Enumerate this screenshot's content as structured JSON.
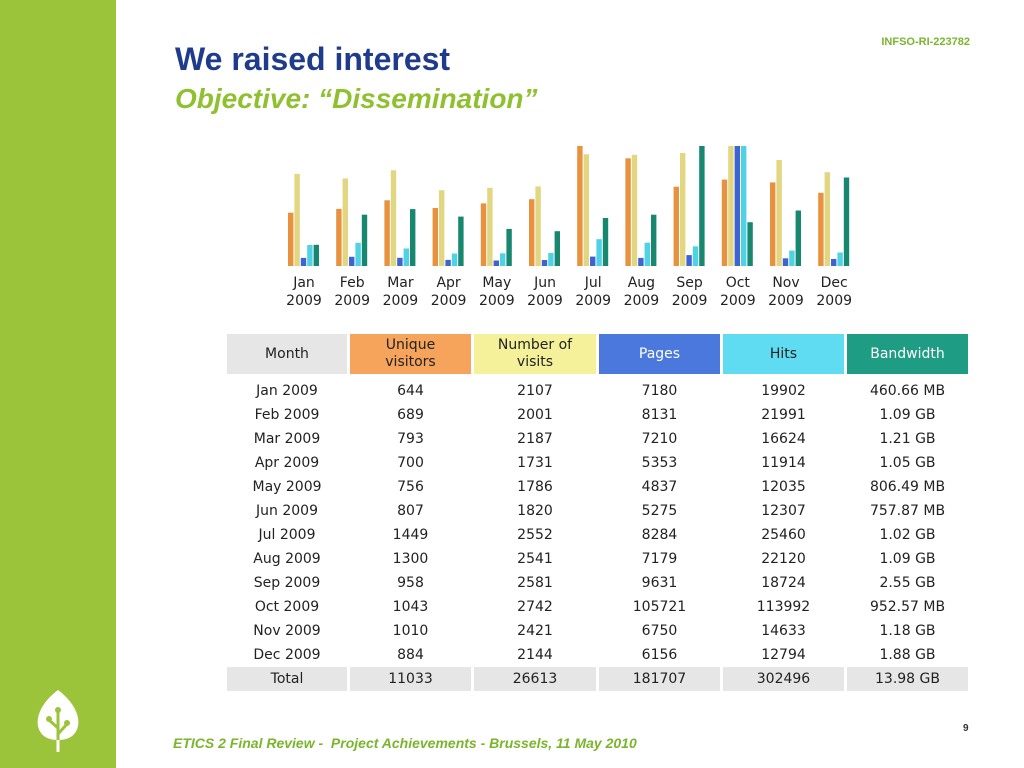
{
  "slide": {
    "title": "We raised interest",
    "subtitle": "Objective: “Dissemination”",
    "project_id": "INFSO-RI-223782",
    "footer": "ETICS 2 Final Review -  Project Achievements - Brussels, 11 May 2010",
    "page_number": "9"
  },
  "colors": {
    "sidebar": "#9cc43a",
    "title": "#1f3c8c",
    "accent": "#8fc030",
    "unique_visitors": "#f6a35c",
    "visits": "#f4f19a",
    "pages": "#4b78dc",
    "hits": "#60dcf2",
    "bandwidth": "#1f9c84"
  },
  "chart_data": {
    "type": "bar",
    "categories": [
      [
        "Jan",
        "2009"
      ],
      [
        "Feb",
        "2009"
      ],
      [
        "Mar",
        "2009"
      ],
      [
        "Apr",
        "2009"
      ],
      [
        "May",
        "2009"
      ],
      [
        "Jun",
        "2009"
      ],
      [
        "Jul",
        "2009"
      ],
      [
        "Aug",
        "2009"
      ],
      [
        "Sep",
        "2009"
      ],
      [
        "Oct",
        "2009"
      ],
      [
        "Nov",
        "2009"
      ],
      [
        "Dec",
        "2009"
      ]
    ],
    "series": [
      {
        "name": "Unique visitors",
        "color": "#e8913e",
        "values": [
          644,
          689,
          793,
          700,
          756,
          807,
          1449,
          1300,
          958,
          1043,
          1010,
          884
        ]
      },
      {
        "name": "Number of visits",
        "color": "#e2d680",
        "values": [
          2107,
          2001,
          2187,
          1731,
          1786,
          1820,
          2552,
          2541,
          2581,
          2742,
          2421,
          2144
        ]
      },
      {
        "name": "Pages",
        "color": "#3f63d0",
        "values": [
          7180,
          8131,
          7210,
          5353,
          4837,
          5275,
          8284,
          7179,
          9631,
          105721,
          6750,
          6156
        ]
      },
      {
        "name": "Hits",
        "color": "#4fd1e6",
        "values": [
          19902,
          21991,
          16624,
          11914,
          12035,
          12307,
          25460,
          22120,
          18724,
          113992,
          14633,
          12794
        ]
      },
      {
        "name": "Bandwidth",
        "color": "#17886f",
        "unit": "MB",
        "values": [
          460.66,
          1116.16,
          1239.04,
          1075.2,
          806.49,
          757.87,
          1044.48,
          1116.16,
          2611.2,
          952.57,
          1208.32,
          1925.12
        ]
      }
    ]
  },
  "table": {
    "headers": [
      [
        "Month"
      ],
      [
        "Unique",
        "visitors"
      ],
      [
        "Number of",
        "visits"
      ],
      [
        "Pages"
      ],
      [
        "Hits"
      ],
      [
        "Bandwidth"
      ]
    ],
    "rows": [
      [
        "Jan 2009",
        "644",
        "2107",
        "7180",
        "19902",
        "460.66 MB"
      ],
      [
        "Feb 2009",
        "689",
        "2001",
        "8131",
        "21991",
        "1.09 GB"
      ],
      [
        "Mar 2009",
        "793",
        "2187",
        "7210",
        "16624",
        "1.21 GB"
      ],
      [
        "Apr 2009",
        "700",
        "1731",
        "5353",
        "11914",
        "1.05 GB"
      ],
      [
        "May 2009",
        "756",
        "1786",
        "4837",
        "12035",
        "806.49 MB"
      ],
      [
        "Jun 2009",
        "807",
        "1820",
        "5275",
        "12307",
        "757.87 MB"
      ],
      [
        "Jul 2009",
        "1449",
        "2552",
        "8284",
        "25460",
        "1.02 GB"
      ],
      [
        "Aug 2009",
        "1300",
        "2541",
        "7179",
        "22120",
        "1.09 GB"
      ],
      [
        "Sep 2009",
        "958",
        "2581",
        "9631",
        "18724",
        "2.55 GB"
      ],
      [
        "Oct 2009",
        "1043",
        "2742",
        "105721",
        "113992",
        "952.57 MB"
      ],
      [
        "Nov 2009",
        "1010",
        "2421",
        "6750",
        "14633",
        "1.18 GB"
      ],
      [
        "Dec 2009",
        "884",
        "2144",
        "6156",
        "12794",
        "1.88 GB"
      ]
    ],
    "total": [
      "Total",
      "11033",
      "26613",
      "181707",
      "302496",
      "13.98 GB"
    ]
  }
}
